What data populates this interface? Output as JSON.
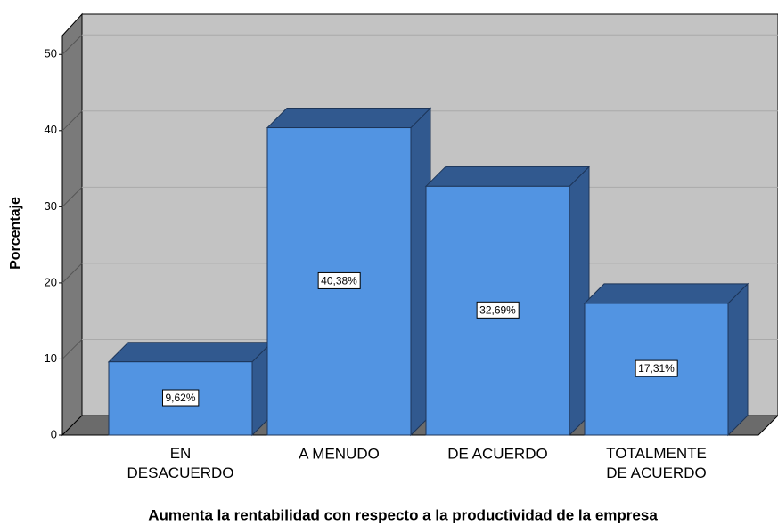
{
  "chart_data": {
    "type": "bar3d",
    "categories": [
      "EN\nDESACUERDO",
      "A MENUDO",
      "DE ACUERDO",
      "TOTALMENTE\nDE ACUERDO"
    ],
    "values": [
      9.62,
      40.38,
      32.69,
      17.31
    ],
    "value_labels": [
      "9,62%",
      "40,38%",
      "32,69%",
      "17,31%"
    ],
    "color": "#5294e2",
    "side_color": "#31598f",
    "ylabel": "Porcentaje",
    "xlabel": "Aumenta la rentabilidad con respecto a la productividad de la empresa",
    "ylim": [
      0,
      52.6
    ],
    "yticks": [
      0,
      10,
      20,
      30,
      40,
      50
    ],
    "grid": true
  }
}
